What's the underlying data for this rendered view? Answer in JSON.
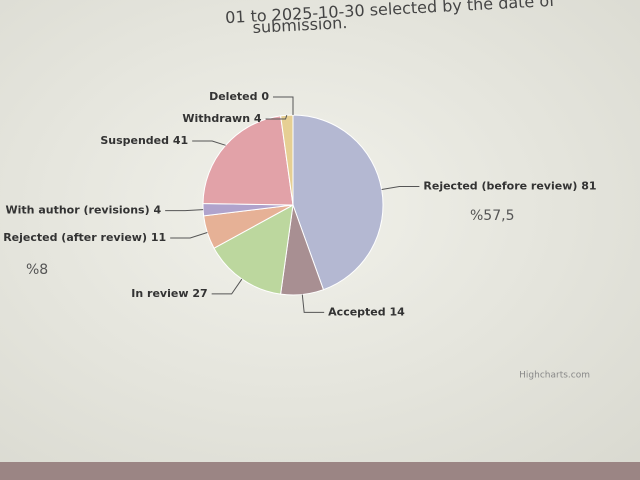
{
  "chart_data": {
    "type": "pie",
    "subtitle_lines": [
      "01 to 2025-10-30 selected by the date of",
      "submission."
    ],
    "categories": [
      "Rejected (before review)",
      "Accepted",
      "In review",
      "Rejected (after review)",
      "With author (revisions)",
      "Suspended",
      "Withdrawn",
      "Deleted"
    ],
    "values": [
      81,
      14,
      27,
      11,
      4,
      41,
      4,
      0
    ],
    "colors": [
      "#b4b8d2",
      "#a88f92",
      "#bcd79e",
      "#e6b196",
      "#b0a3cc",
      "#e2a2a8",
      "#e6cf93",
      "#9fc7c0"
    ],
    "annotations": [
      "%57,5",
      "%8"
    ],
    "credits": "Highcharts.com"
  }
}
